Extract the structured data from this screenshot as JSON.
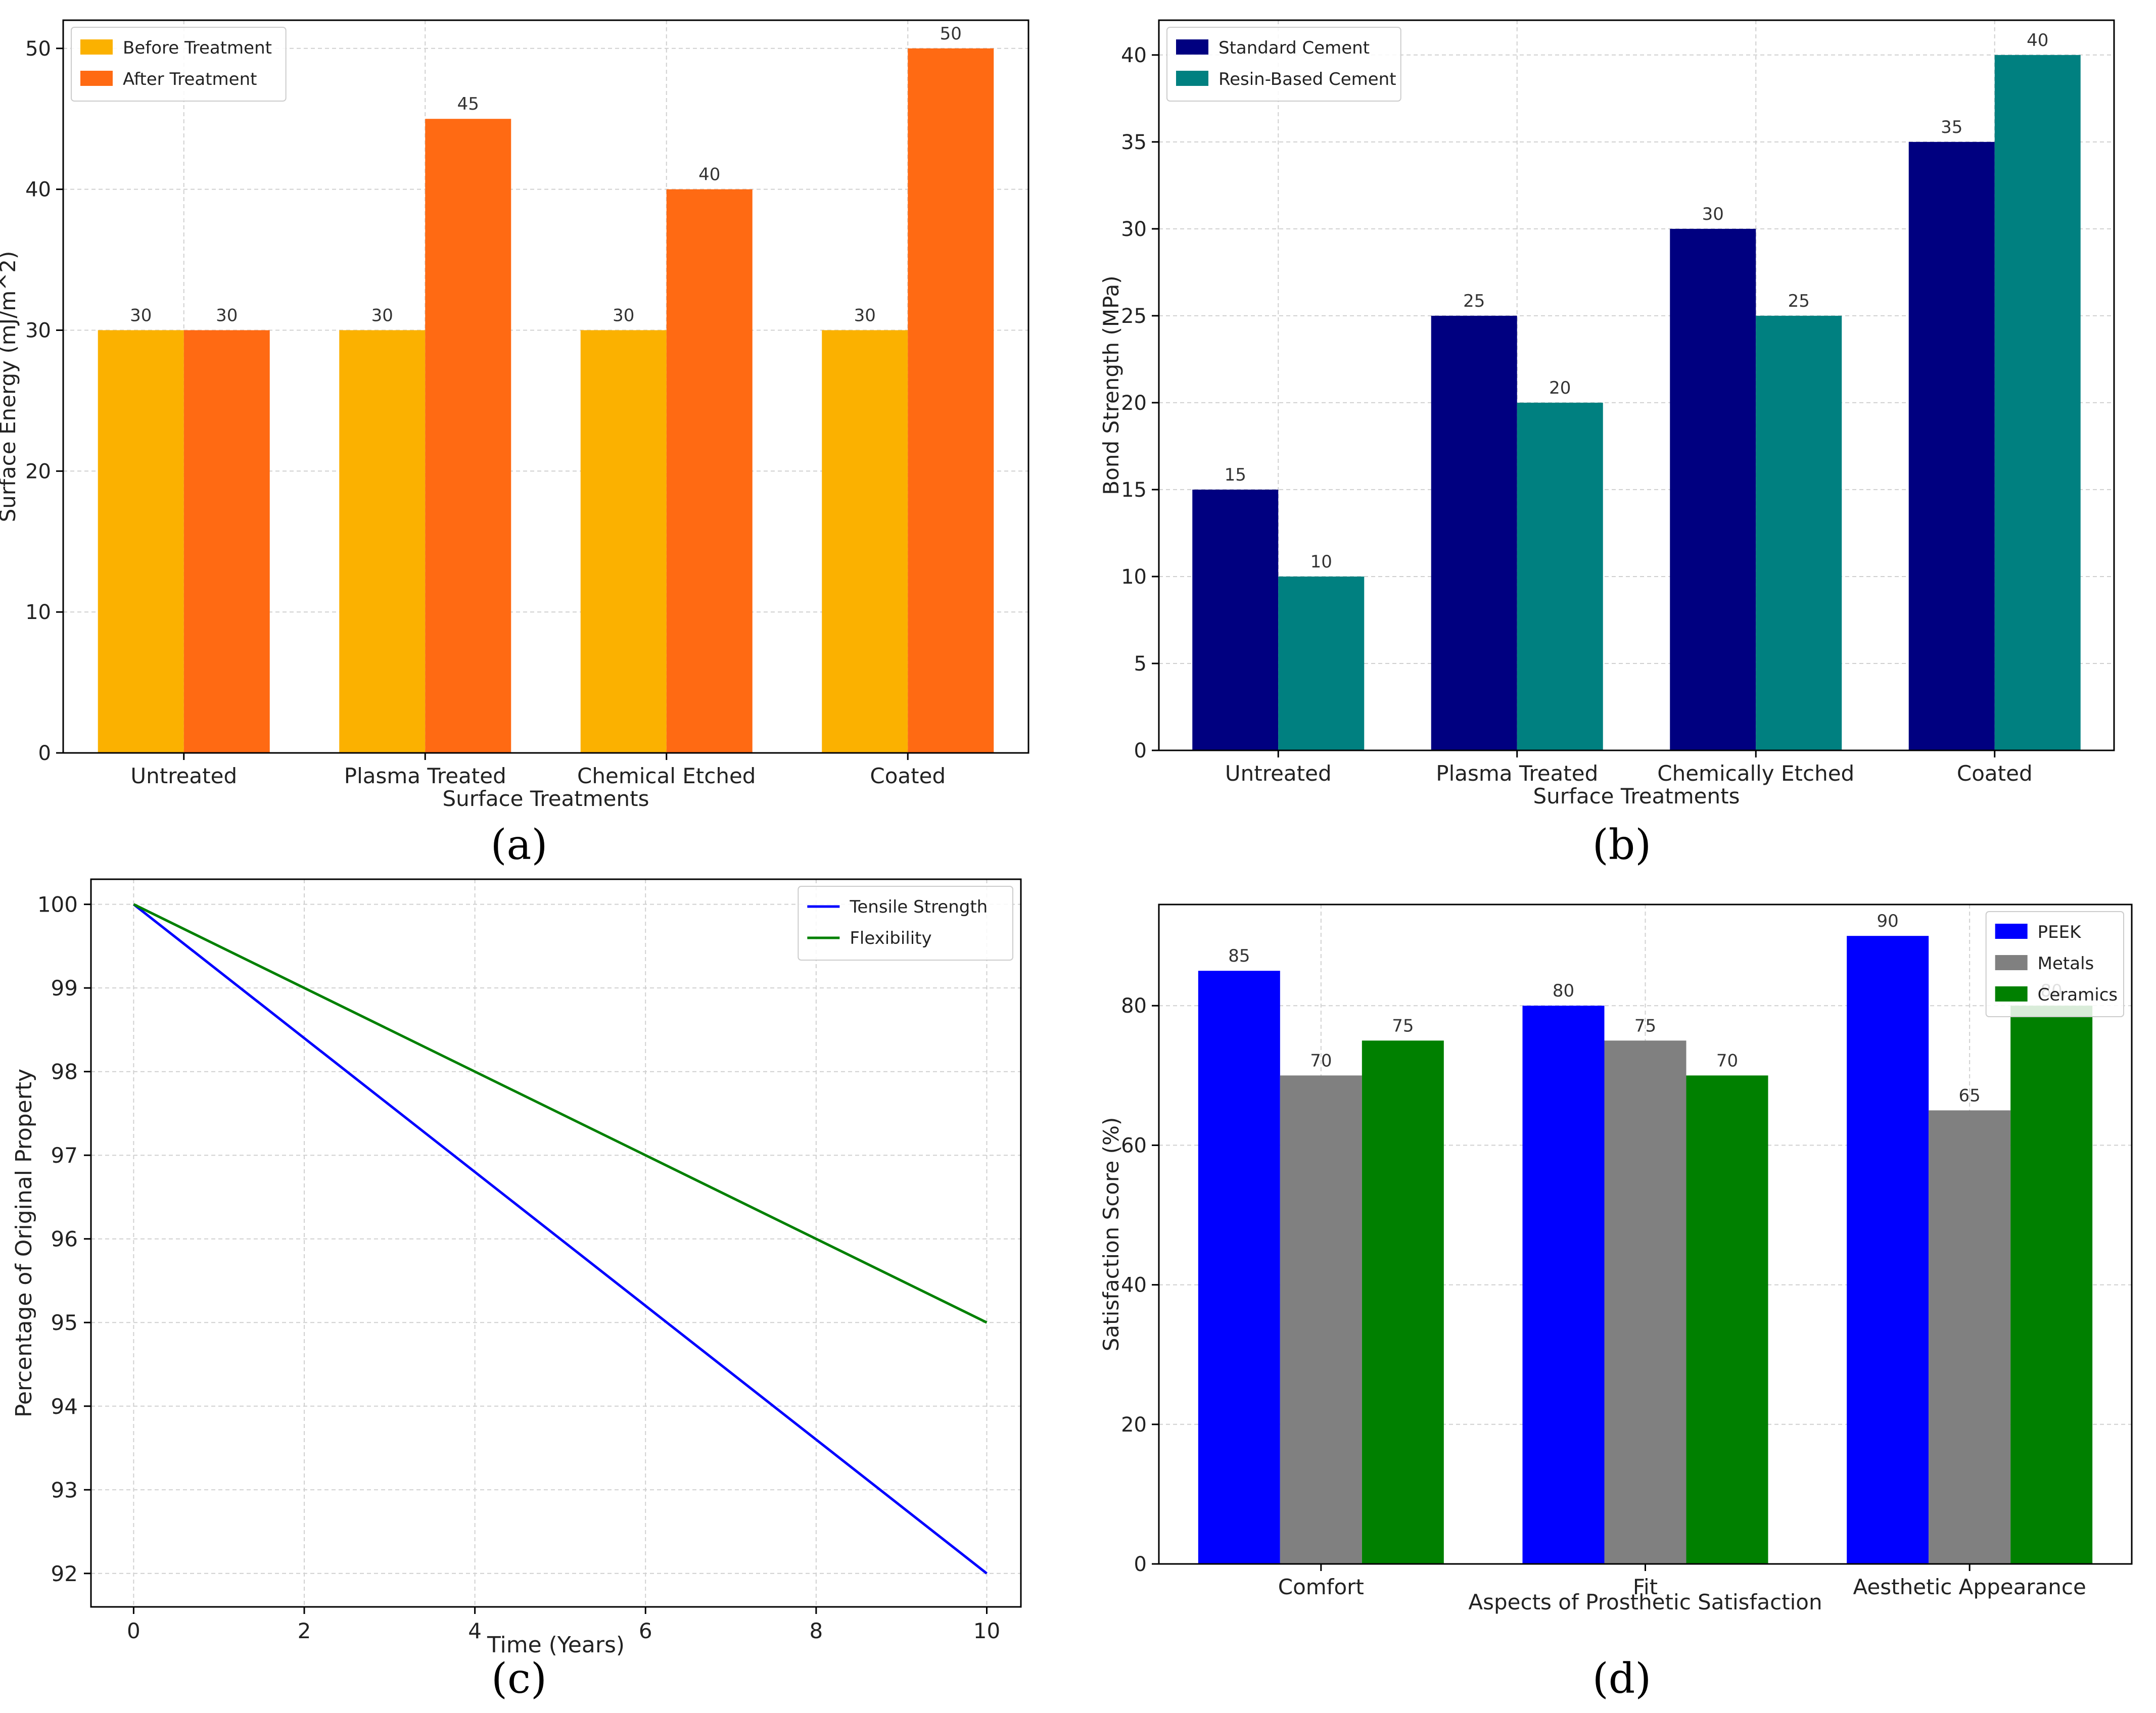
{
  "panel_labels": [
    "(a)",
    "(b)",
    "(c)",
    "(d)"
  ],
  "chart_data": [
    {
      "id": "a",
      "type": "bar",
      "title": "",
      "xlabel": "Surface Treatments",
      "ylabel": "Surface Energy (mJ/m^2)",
      "categories": [
        "Untreated",
        "Plasma Treated",
        "Chemical Etched",
        "Coated"
      ],
      "series": [
        {
          "name": "Before Treatment",
          "values": [
            30,
            30,
            30,
            30
          ],
          "color": "#FBB100"
        },
        {
          "name": "After Treatment",
          "values": [
            30,
            45,
            40,
            50
          ],
          "color": "#FF6A13"
        }
      ],
      "ylim": [
        0,
        52
      ],
      "yticks": [
        0,
        10,
        20,
        30,
        40,
        50
      ],
      "grid": true,
      "legend": "top-left",
      "data_labels": true
    },
    {
      "id": "b",
      "type": "bar",
      "title": "",
      "xlabel": "Surface Treatments",
      "ylabel": "Bond Strength (MPa)",
      "categories": [
        "Untreated",
        "Plasma Treated",
        "Chemically Etched",
        "Coated"
      ],
      "series": [
        {
          "name": "Standard Cement",
          "values": [
            15,
            25,
            30,
            35
          ],
          "color": "#000080"
        },
        {
          "name": "Resin-Based Cement",
          "values": [
            10,
            20,
            25,
            40
          ],
          "color": "#008080"
        }
      ],
      "ylim": [
        0,
        42
      ],
      "yticks": [
        0,
        5,
        10,
        15,
        20,
        25,
        30,
        35,
        40
      ],
      "grid": true,
      "legend": "top-left",
      "data_labels": true
    },
    {
      "id": "c",
      "type": "line",
      "title": "",
      "xlabel": "Time (Years)",
      "ylabel": "Percentage of Original Property",
      "series": [
        {
          "name": "Tensile Strength",
          "x": [
            0,
            10
          ],
          "y": [
            100,
            92
          ],
          "color": "#0000FF"
        },
        {
          "name": "Flexibility",
          "x": [
            0,
            10
          ],
          "y": [
            100,
            95
          ],
          "color": "#008000"
        }
      ],
      "xlim": [
        -0.5,
        10.4
      ],
      "ylim": [
        91.6,
        100.3
      ],
      "xticks": [
        0,
        2,
        4,
        6,
        8,
        10
      ],
      "yticks": [
        92,
        93,
        94,
        95,
        96,
        97,
        98,
        99,
        100
      ],
      "grid": true,
      "legend": "top-right"
    },
    {
      "id": "d",
      "type": "bar",
      "title": "",
      "xlabel": "Aspects of Prosthetic Satisfaction",
      "ylabel": "Satisfaction Score (%)",
      "categories": [
        "Comfort",
        "Fit",
        "Aesthetic Appearance"
      ],
      "series": [
        {
          "name": "PEEK",
          "values": [
            85,
            80,
            90
          ],
          "color": "#0000FF"
        },
        {
          "name": "Metals",
          "values": [
            70,
            75,
            65
          ],
          "color": "#808080"
        },
        {
          "name": "Ceramics",
          "values": [
            75,
            70,
            80
          ],
          "color": "#008000"
        }
      ],
      "ylim": [
        0,
        94.5
      ],
      "yticks": [
        0,
        20,
        40,
        60,
        80
      ],
      "grid": true,
      "legend": "top-right",
      "data_labels": true
    }
  ]
}
